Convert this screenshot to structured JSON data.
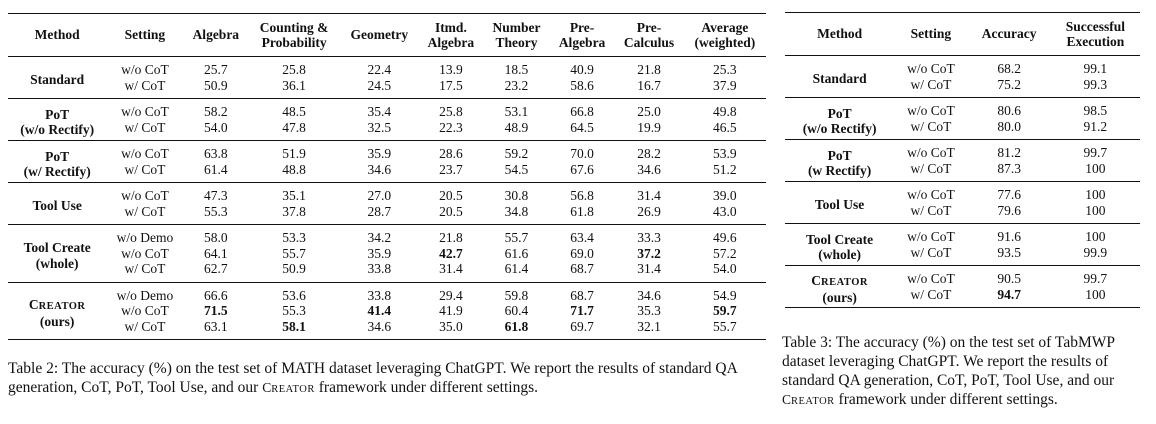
{
  "table2": {
    "headers": [
      {
        "l1": "Method",
        "l2": ""
      },
      {
        "l1": "Setting",
        "l2": ""
      },
      {
        "l1": "Algebra",
        "l2": ""
      },
      {
        "l1": "Counting &",
        "l2": "Probability"
      },
      {
        "l1": "Geometry",
        "l2": ""
      },
      {
        "l1": "Itmd.",
        "l2": "Algebra"
      },
      {
        "l1": "Number",
        "l2": "Theory"
      },
      {
        "l1": "Pre-",
        "l2": "Algebra"
      },
      {
        "l1": "Pre-",
        "l2": "Calculus"
      },
      {
        "l1": "Average",
        "l2": "(weighted)"
      }
    ],
    "groups": [
      {
        "method_l1": "Standard",
        "method_l2": "",
        "rows": [
          {
            "setting": "w/o CoT",
            "values": [
              "25.7",
              "25.8",
              "22.4",
              "13.9",
              "18.5",
              "40.9",
              "21.8",
              "25.3"
            ],
            "bold": []
          },
          {
            "setting": "w/ CoT",
            "values": [
              "50.9",
              "36.1",
              "24.5",
              "17.5",
              "23.2",
              "58.6",
              "16.7",
              "37.9"
            ],
            "bold": []
          }
        ]
      },
      {
        "method_l1": "PoT",
        "method_l2": "(w/o Rectify)",
        "rows": [
          {
            "setting": "w/o CoT",
            "values": [
              "58.2",
              "48.5",
              "35.4",
              "25.8",
              "53.1",
              "66.8",
              "25.0",
              "49.8"
            ],
            "bold": []
          },
          {
            "setting": "w/ CoT",
            "values": [
              "54.0",
              "47.8",
              "32.5",
              "22.3",
              "48.9",
              "64.5",
              "19.9",
              "46.5"
            ],
            "bold": []
          }
        ]
      },
      {
        "method_l1": "PoT",
        "method_l2": "(w/ Rectify)",
        "rows": [
          {
            "setting": "w/o CoT",
            "values": [
              "63.8",
              "51.9",
              "35.9",
              "28.6",
              "59.2",
              "70.0",
              "28.2",
              "53.9"
            ],
            "bold": []
          },
          {
            "setting": "w/ CoT",
            "values": [
              "61.4",
              "48.8",
              "34.6",
              "23.7",
              "54.5",
              "67.6",
              "34.6",
              "51.2"
            ],
            "bold": []
          }
        ]
      },
      {
        "method_l1": "Tool Use",
        "method_l2": "",
        "rows": [
          {
            "setting": "w/o CoT",
            "values": [
              "47.3",
              "35.1",
              "27.0",
              "20.5",
              "30.8",
              "56.8",
              "31.4",
              "39.0"
            ],
            "bold": []
          },
          {
            "setting": "w/ CoT",
            "values": [
              "55.3",
              "37.8",
              "28.7",
              "20.5",
              "34.8",
              "61.8",
              "26.9",
              "43.0"
            ],
            "bold": []
          }
        ]
      },
      {
        "method_l1": "Tool Create",
        "method_l2": "(whole)",
        "rows": [
          {
            "setting": "w/o Demo",
            "values": [
              "58.0",
              "53.3",
              "34.2",
              "21.8",
              "55.7",
              "63.4",
              "33.3",
              "49.6"
            ],
            "bold": []
          },
          {
            "setting": "w/o CoT",
            "values": [
              "64.1",
              "55.7",
              "35.9",
              "42.7",
              "61.6",
              "69.0",
              "37.2",
              "57.2"
            ],
            "bold": [
              3,
              6
            ]
          },
          {
            "setting": "w/ CoT",
            "values": [
              "62.7",
              "50.9",
              "33.8",
              "31.4",
              "61.4",
              "68.7",
              "31.4",
              "54.0"
            ],
            "bold": []
          }
        ]
      },
      {
        "method_l1": "CREATOR",
        "method_l2": "(ours)",
        "rows": [
          {
            "setting": "w/o Demo",
            "values": [
              "66.6",
              "53.6",
              "33.8",
              "29.4",
              "59.8",
              "68.7",
              "34.6",
              "54.9"
            ],
            "bold": []
          },
          {
            "setting": "w/o CoT",
            "values": [
              "71.5",
              "55.3",
              "41.4",
              "41.9",
              "60.4",
              "71.7",
              "35.3",
              "59.7"
            ],
            "bold": [
              0,
              2,
              5,
              7
            ]
          },
          {
            "setting": "w/ CoT",
            "values": [
              "63.1",
              "58.1",
              "34.6",
              "35.0",
              "61.8",
              "69.7",
              "32.1",
              "55.7"
            ],
            "bold": [
              1,
              4
            ]
          }
        ]
      }
    ],
    "caption": "Table 2: The accuracy (%) on the test set of MATH dataset leveraging ChatGPT. We report the results of standard QA generation, CoT, PoT, Tool Use, and our CREATOR framework under different settings."
  },
  "table3": {
    "headers": [
      {
        "l1": "Method",
        "l2": ""
      },
      {
        "l1": "Setting",
        "l2": ""
      },
      {
        "l1": "Accuracy",
        "l2": ""
      },
      {
        "l1": "Successful",
        "l2": "Execution"
      }
    ],
    "groups": [
      {
        "method_l1": "Standard",
        "method_l2": "",
        "rows": [
          {
            "setting": "w/o CoT",
            "values": [
              "68.2",
              "99.1"
            ],
            "bold": []
          },
          {
            "setting": "w/ CoT",
            "values": [
              "75.2",
              "99.3"
            ],
            "bold": []
          }
        ]
      },
      {
        "method_l1": "PoT",
        "method_l2": "(w/o Rectify)",
        "rows": [
          {
            "setting": "w/o CoT",
            "values": [
              "80.6",
              "98.5"
            ],
            "bold": []
          },
          {
            "setting": "w/ CoT",
            "values": [
              "80.0",
              "91.2"
            ],
            "bold": []
          }
        ]
      },
      {
        "method_l1": "PoT",
        "method_l2": "(w Rectify)",
        "rows": [
          {
            "setting": "w/o CoT",
            "values": [
              "81.2",
              "99.7"
            ],
            "bold": []
          },
          {
            "setting": "w/ CoT",
            "values": [
              "87.3",
              "100"
            ],
            "bold": []
          }
        ]
      },
      {
        "method_l1": "Tool Use",
        "method_l2": "",
        "rows": [
          {
            "setting": "w/o CoT",
            "values": [
              "77.6",
              "100"
            ],
            "bold": []
          },
          {
            "setting": "w/ CoT",
            "values": [
              "79.6",
              "100"
            ],
            "bold": []
          }
        ]
      },
      {
        "method_l1": "Tool Create",
        "method_l2": "(whole)",
        "rows": [
          {
            "setting": "w/o CoT",
            "values": [
              "91.6",
              "100"
            ],
            "bold": []
          },
          {
            "setting": "w/ CoT",
            "values": [
              "93.5",
              "99.9"
            ],
            "bold": []
          }
        ]
      },
      {
        "method_l1": "CREATOR",
        "method_l2": "(ours)",
        "rows": [
          {
            "setting": "w/o CoT",
            "values": [
              "90.5",
              "99.7"
            ],
            "bold": []
          },
          {
            "setting": "w/ CoT",
            "values": [
              "94.7",
              "100"
            ],
            "bold": [
              0
            ]
          }
        ]
      }
    ],
    "caption": "Table 3: The accuracy (%) on the test set of TabMWP dataset leveraging ChatGPT. We report the results of standard QA generation, CoT, PoT, Tool Use, and our CREATOR framework under different settings."
  }
}
